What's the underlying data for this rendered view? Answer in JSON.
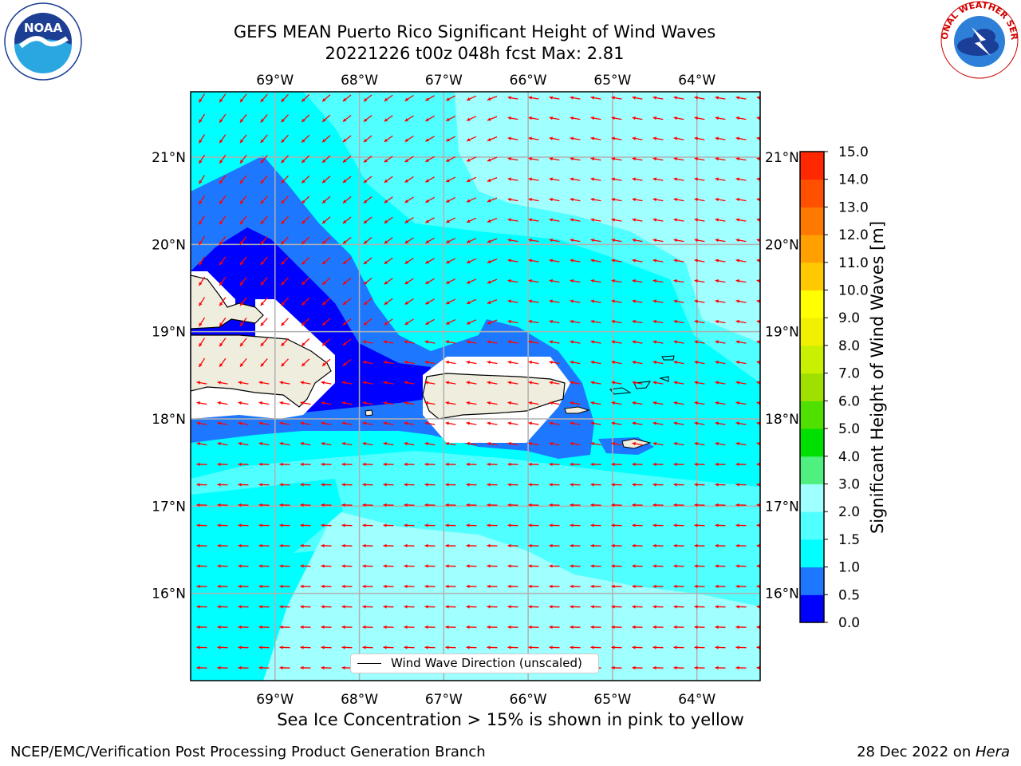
{
  "title": {
    "line1": "GEFS MEAN Puerto Rico Significant Height of Wind Waves",
    "line2": "20221226 t00z 048h fcst   Max: 2.81"
  },
  "logos": {
    "left": "noaa-logo",
    "right": "national-weather-service-logo",
    "left_text": "NOAA",
    "right_text": "NATIONAL WEATHER SERVICE"
  },
  "map": {
    "lon_range": [
      -70.0,
      -63.25
    ],
    "lat_range": [
      15.0,
      21.75
    ],
    "lon_ticks": [
      {
        "value": -69,
        "label": "69°W"
      },
      {
        "value": -68,
        "label": "68°W"
      },
      {
        "value": -67,
        "label": "67°W"
      },
      {
        "value": -66,
        "label": "66°W"
      },
      {
        "value": -65,
        "label": "65°W"
      },
      {
        "value": -64,
        "label": "64°W"
      }
    ],
    "lat_ticks": [
      {
        "value": 21,
        "label": "21°N"
      },
      {
        "value": 20,
        "label": "20°N"
      },
      {
        "value": 19,
        "label": "19°N"
      },
      {
        "value": 18,
        "label": "18°N"
      },
      {
        "value": 17,
        "label": "17°N"
      },
      {
        "value": 16,
        "label": "16°N"
      }
    ],
    "land_color": "#efedde",
    "arrow_color": "#ff0000",
    "gridline_color": "#b0b0b0"
  },
  "colorbar": {
    "label": "Significant Height of Wind Waves [m]",
    "ticks": [
      "0.0",
      "0.5",
      "1.0",
      "1.5",
      "2.0",
      "3.0",
      "4.0",
      "5.0",
      "6.0",
      "7.0",
      "8.0",
      "9.0",
      "10.0",
      "11.0",
      "12.0",
      "13.0",
      "14.0",
      "15.0"
    ],
    "colors": [
      "#0000ff",
      "#1e78ff",
      "#00ffff",
      "#50ffff",
      "#a0ffff",
      "#50f080",
      "#00e000",
      "#50e000",
      "#a0e000",
      "#c8f000",
      "#f0f000",
      "#ffff00",
      "#ffc800",
      "#ffa000",
      "#ff7800",
      "#ff5000",
      "#ff2800"
    ]
  },
  "legend": {
    "label": "Wind Wave Direction (unscaled)"
  },
  "notes": {
    "sea_ice": "Sea Ice Concentration > 15% is shown in pink to yellow",
    "footer_left": "NCEP/EMC/Verification Post Processing Product Generation Branch",
    "footer_date": "28 Dec 2022 on ",
    "footer_machine": "Hera"
  }
}
